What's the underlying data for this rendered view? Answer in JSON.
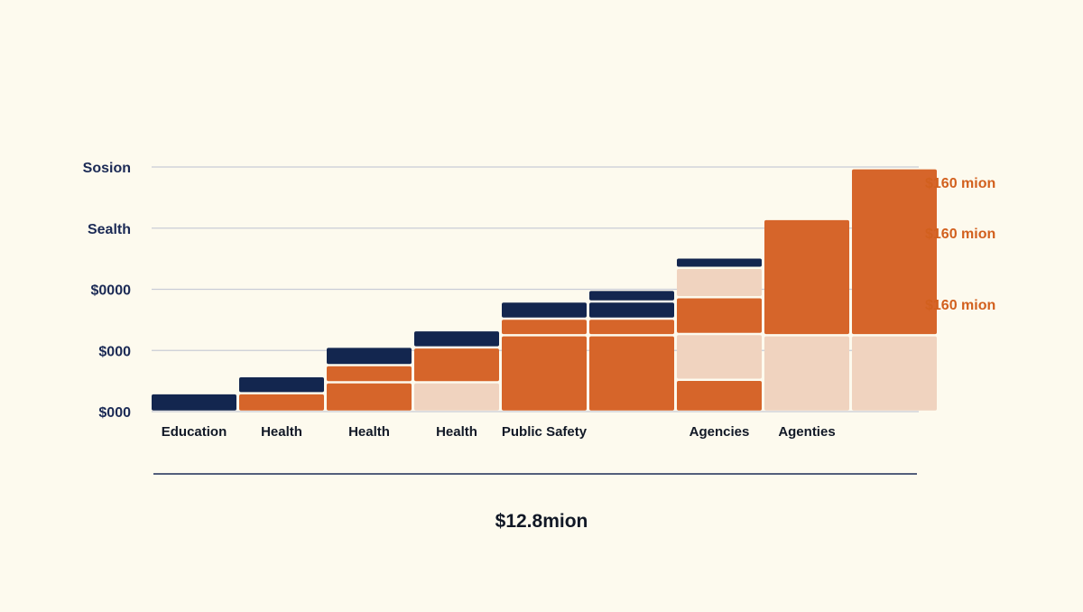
{
  "chart_data": {
    "type": "bar",
    "stacked": true,
    "title": "",
    "xlabel": "",
    "ylabel": "",
    "grid": true,
    "legend": "none",
    "y_tick_labels": [
      "$000",
      "$000",
      "$0000",
      "Sealth",
      "Sosion"
    ],
    "ylim": [
      0,
      4
    ],
    "categories": [
      "Education",
      "Health",
      "Health",
      "Health",
      "Public Safety",
      "",
      "Agencies",
      "Agenties",
      ""
    ],
    "stacks": [
      [
        {
          "tone": "navy",
          "h": 0.3
        }
      ],
      [
        {
          "tone": "orange",
          "h": 0.3
        },
        {
          "tone": "navy",
          "h": 0.28
        }
      ],
      [
        {
          "tone": "orange",
          "h": 0.48
        },
        {
          "tone": "orange",
          "h": 0.28
        },
        {
          "tone": "navy",
          "h": 0.3
        }
      ],
      [
        {
          "tone": "peach",
          "h": 0.48
        },
        {
          "tone": "orange",
          "h": 0.57
        },
        {
          "tone": "navy",
          "h": 0.28
        }
      ],
      [
        {
          "tone": "orange",
          "h": 1.25
        },
        {
          "tone": "orange",
          "h": 0.27
        },
        {
          "tone": "navy",
          "h": 0.28
        }
      ],
      [
        {
          "tone": "orange",
          "h": 1.25
        },
        {
          "tone": "orange",
          "h": 0.27
        },
        {
          "tone": "navy",
          "h": 0.28
        },
        {
          "tone": "navy",
          "h": 0.19
        }
      ],
      [
        {
          "tone": "orange",
          "h": 0.52
        },
        {
          "tone": "peach",
          "h": 0.75
        },
        {
          "tone": "orange",
          "h": 0.6
        },
        {
          "tone": "peach",
          "h": 0.48
        },
        {
          "tone": "navy",
          "h": 0.17
        }
      ],
      [
        {
          "tone": "peach",
          "h": 1.25
        },
        {
          "tone": "orange",
          "h": 1.9
        }
      ],
      [
        {
          "tone": "peach",
          "h": 1.25
        },
        {
          "tone": "orange",
          "h": 2.73
        }
      ]
    ],
    "annotations": [
      "$160 mion",
      "$160 mion",
      "$160 mion"
    ],
    "total_label": "$12.8mion",
    "colors": {
      "navy": "#13264f",
      "orange": "#d6652a",
      "peach": "#f0d3bf",
      "grid": "#c9ccd6",
      "annotation": "#d2601e"
    }
  }
}
